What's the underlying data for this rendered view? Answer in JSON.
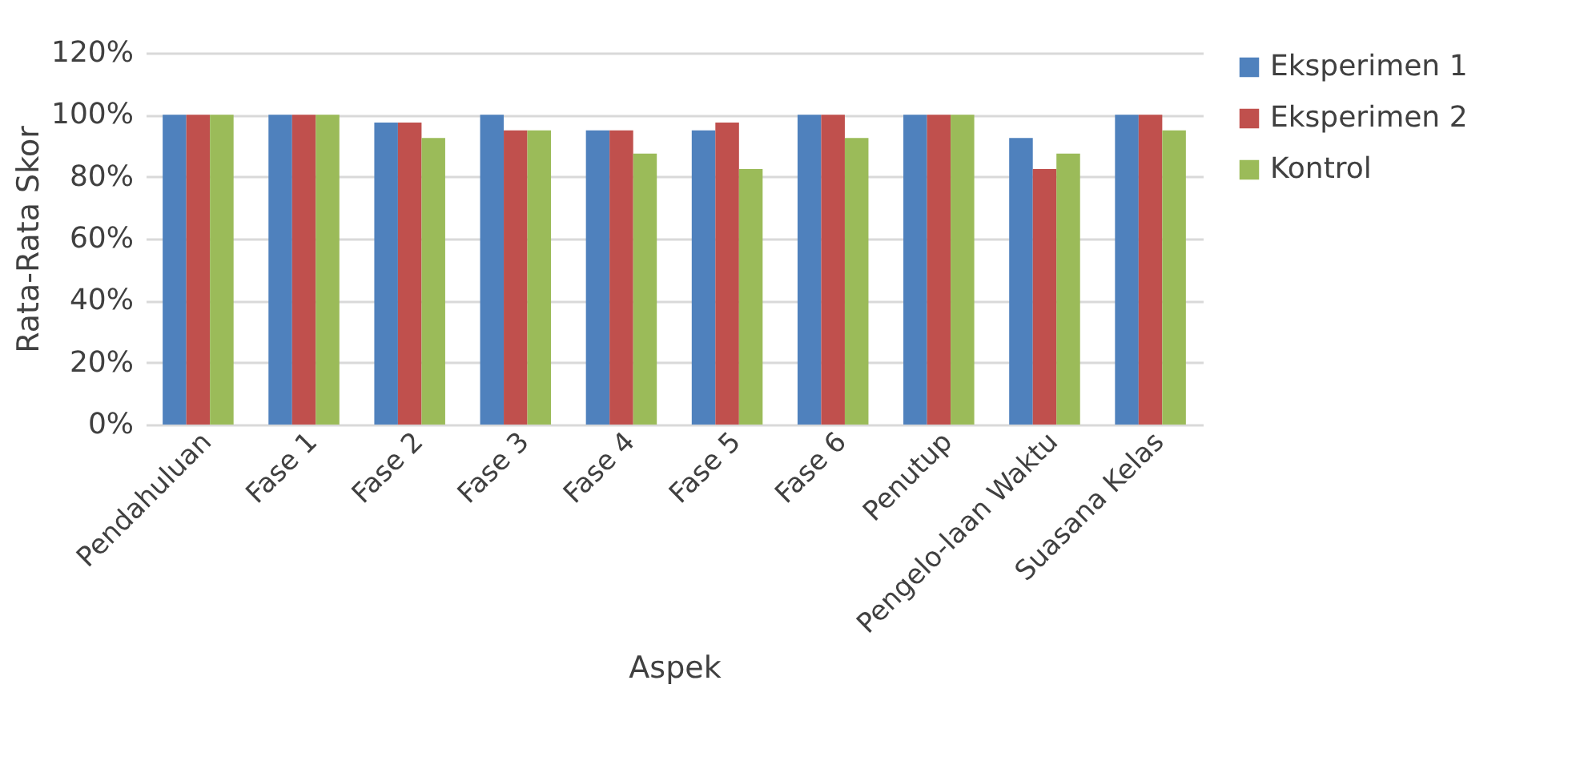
{
  "chart_data": {
    "type": "bar",
    "xlabel": "Aspek",
    "ylabel": "Rata-Rata Skor",
    "categories": [
      "Pendahuluan",
      "Fase 1",
      "Fase 2",
      "Fase 3",
      "Fase 4",
      "Fase 5",
      "Fase 6",
      "Penutup",
      "Pengelo-laan Waktu",
      "Suasana Kelas"
    ],
    "series": [
      {
        "name": "Eksperimen 1",
        "color": "#4f81bd",
        "values": [
          100,
          100,
          97.5,
          100,
          95,
          95,
          100,
          100,
          92.5,
          100
        ]
      },
      {
        "name": "Eksperimen 2",
        "color": "#c0504d",
        "values": [
          100,
          100,
          97.5,
          95,
          95,
          97.5,
          100,
          100,
          82.5,
          100
        ]
      },
      {
        "name": "Kontrol",
        "color": "#9bbb59",
        "values": [
          100,
          100,
          92.5,
          95,
          87.5,
          82.5,
          92.5,
          100,
          87.5,
          95
        ]
      }
    ],
    "ylim": [
      0,
      120
    ],
    "yticks": [
      {
        "value": 0,
        "label": "0%"
      },
      {
        "value": 20,
        "label": "20%"
      },
      {
        "value": 40,
        "label": "40%"
      },
      {
        "value": 60,
        "label": "60%"
      },
      {
        "value": 80,
        "label": "80%"
      },
      {
        "value": 100,
        "label": "100%"
      },
      {
        "value": 120,
        "label": "120%"
      }
    ],
    "grid": "y",
    "legend": "right"
  }
}
